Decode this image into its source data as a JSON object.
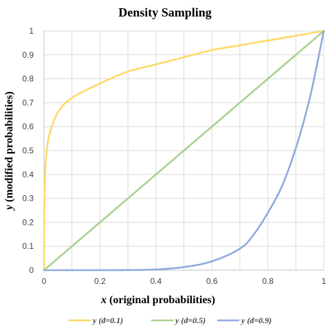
{
  "chart_data": {
    "type": "line",
    "title": "Density Sampling",
    "xlabel_var": "x",
    "xlabel_rest": " (original probabilities)",
    "ylabel_var": "y",
    "ylabel_rest": " (modified probabilities)",
    "xlim": [
      0,
      1
    ],
    "ylim": [
      0,
      1
    ],
    "x_ticks": [
      "0",
      "0.2",
      "0.4",
      "0.6",
      "0.8",
      "1"
    ],
    "y_ticks": [
      "0",
      "0.1",
      "0.2",
      "0.3",
      "0.4",
      "0.5",
      "0.6",
      "0.7",
      "0.8",
      "0.9",
      "1"
    ],
    "grid": true,
    "legend_position": "bottom",
    "series": [
      {
        "name": "y (d=0.1)",
        "color": "#FFD966",
        "x": [
          0,
          0.001,
          0.005,
          0.01,
          0.02,
          0.05,
          0.1,
          0.2,
          0.3,
          0.4,
          0.5,
          0.6,
          0.7,
          0.8,
          0.9,
          1
        ],
        "y": [
          0,
          0.25,
          0.43,
          0.5,
          0.57,
          0.66,
          0.72,
          0.78,
          0.83,
          0.86,
          0.89,
          0.92,
          0.94,
          0.96,
          0.98,
          1
        ]
      },
      {
        "name": "y (d=0.5)",
        "color": "#A9D18E",
        "x": [
          0,
          0.2,
          0.4,
          0.6,
          0.8,
          1
        ],
        "y": [
          0,
          0.2,
          0.4,
          0.6,
          0.8,
          1
        ]
      },
      {
        "name": "y (d=0.9)",
        "color": "#8FAADC",
        "x": [
          0,
          0.1,
          0.2,
          0.3,
          0.4,
          0.5,
          0.6,
          0.7,
          0.75,
          0.8,
          0.85,
          0.9,
          0.95,
          1
        ],
        "y": [
          0,
          0,
          0,
          0.0004,
          0.003,
          0.013,
          0.037,
          0.09,
          0.15,
          0.24,
          0.35,
          0.51,
          0.72,
          1
        ]
      }
    ]
  }
}
